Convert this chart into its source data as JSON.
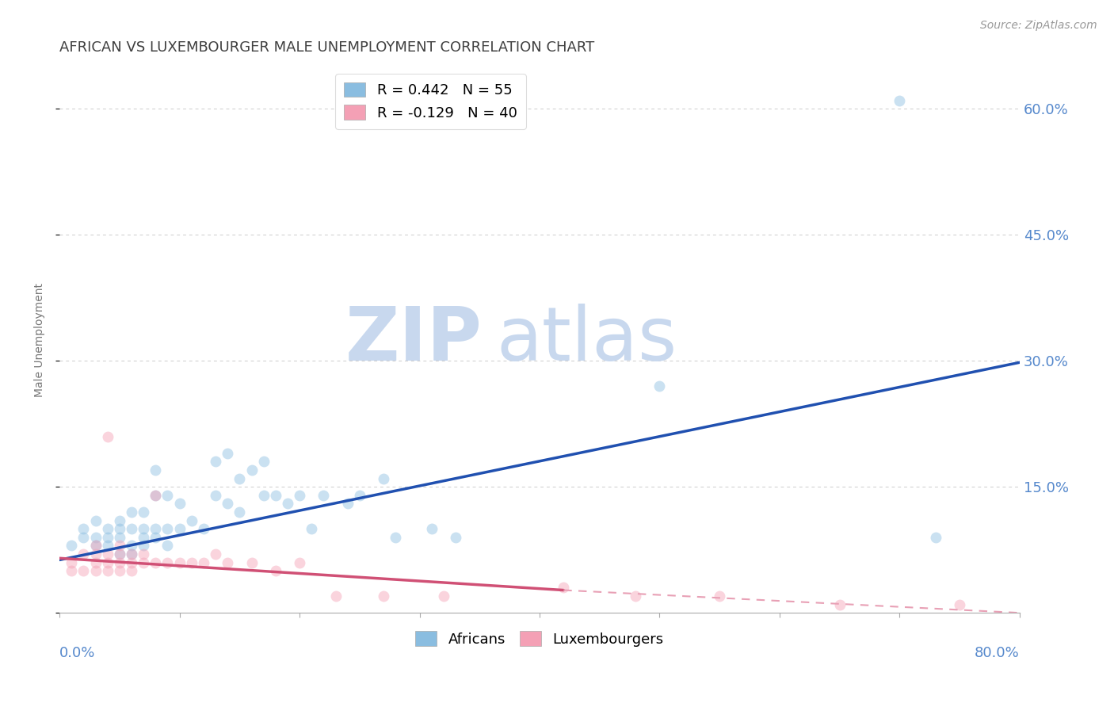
{
  "title": "AFRICAN VS LUXEMBOURGER MALE UNEMPLOYMENT CORRELATION CHART",
  "source": "Source: ZipAtlas.com",
  "ylabel": "Male Unemployment",
  "yticks": [
    0.0,
    0.15,
    0.3,
    0.45,
    0.6
  ],
  "ytick_labels": [
    "",
    "15.0%",
    "30.0%",
    "45.0%",
    "60.0%"
  ],
  "xlim": [
    0.0,
    0.8
  ],
  "ylim": [
    0.0,
    0.65
  ],
  "watermark_zip": "ZIP",
  "watermark_atlas": "atlas",
  "legend_entries": [
    {
      "label": "R = 0.442   N = 55",
      "color": "#8abde0"
    },
    {
      "label": "R = -0.129   N = 40",
      "color": "#f4a0b5"
    }
  ],
  "africans_scatter_x": [
    0.01,
    0.02,
    0.02,
    0.03,
    0.03,
    0.03,
    0.04,
    0.04,
    0.04,
    0.05,
    0.05,
    0.05,
    0.05,
    0.06,
    0.06,
    0.06,
    0.06,
    0.07,
    0.07,
    0.07,
    0.07,
    0.08,
    0.08,
    0.08,
    0.08,
    0.09,
    0.09,
    0.09,
    0.1,
    0.1,
    0.11,
    0.12,
    0.13,
    0.13,
    0.14,
    0.14,
    0.15,
    0.15,
    0.16,
    0.17,
    0.17,
    0.18,
    0.19,
    0.2,
    0.21,
    0.22,
    0.24,
    0.25,
    0.27,
    0.28,
    0.31,
    0.33,
    0.5,
    0.7,
    0.73
  ],
  "africans_scatter_y": [
    0.08,
    0.09,
    0.1,
    0.08,
    0.09,
    0.11,
    0.08,
    0.09,
    0.1,
    0.07,
    0.09,
    0.1,
    0.11,
    0.07,
    0.08,
    0.1,
    0.12,
    0.08,
    0.09,
    0.1,
    0.12,
    0.09,
    0.1,
    0.14,
    0.17,
    0.08,
    0.1,
    0.14,
    0.1,
    0.13,
    0.11,
    0.1,
    0.14,
    0.18,
    0.13,
    0.19,
    0.12,
    0.16,
    0.17,
    0.14,
    0.18,
    0.14,
    0.13,
    0.14,
    0.1,
    0.14,
    0.13,
    0.14,
    0.16,
    0.09,
    0.1,
    0.09,
    0.27,
    0.61,
    0.09
  ],
  "luxembourgers_scatter_x": [
    0.01,
    0.01,
    0.02,
    0.02,
    0.03,
    0.03,
    0.03,
    0.03,
    0.04,
    0.04,
    0.04,
    0.04,
    0.05,
    0.05,
    0.05,
    0.05,
    0.06,
    0.06,
    0.06,
    0.07,
    0.07,
    0.08,
    0.08,
    0.09,
    0.1,
    0.11,
    0.12,
    0.13,
    0.14,
    0.16,
    0.18,
    0.2,
    0.23,
    0.27,
    0.32,
    0.42,
    0.48,
    0.55,
    0.65,
    0.75
  ],
  "luxembourgers_scatter_y": [
    0.05,
    0.06,
    0.05,
    0.07,
    0.05,
    0.06,
    0.07,
    0.08,
    0.05,
    0.06,
    0.07,
    0.21,
    0.05,
    0.06,
    0.07,
    0.08,
    0.05,
    0.06,
    0.07,
    0.06,
    0.07,
    0.06,
    0.14,
    0.06,
    0.06,
    0.06,
    0.06,
    0.07,
    0.06,
    0.06,
    0.05,
    0.06,
    0.02,
    0.02,
    0.02,
    0.03,
    0.02,
    0.02,
    0.01,
    0.01
  ],
  "african_color": "#8abde0",
  "african_edge_color": "#6a9dc0",
  "luxembourger_color": "#f4a0b5",
  "luxembourger_edge_color": "#d47090",
  "trendline_african_color": "#2050b0",
  "trendline_luxembourger_solid_color": "#d05075",
  "trendline_luxembourger_dashed_color": "#e8a0b5",
  "background_color": "#ffffff",
  "grid_color": "#cccccc",
  "title_color": "#404040",
  "axis_label_color": "#5588cc",
  "marker_size": 100,
  "marker_alpha": 0.45,
  "title_fontsize": 13,
  "source_fontsize": 10,
  "ylabel_fontsize": 10,
  "legend_fontsize": 13,
  "watermark_fontsize_zip": 68,
  "watermark_fontsize_atlas": 68,
  "watermark_color": "#c8d8ee",
  "trendline_lw": 2.5,
  "african_trendline_x0": 0.0,
  "african_trendline_x1": 0.8,
  "african_trendline_y0": 0.063,
  "african_trendline_y1": 0.298,
  "lux_trendline_x0": 0.0,
  "lux_trendline_x1_solid": 0.42,
  "lux_trendline_x1_dashed": 0.8,
  "lux_trendline_y0": 0.065,
  "lux_trendline_y1_solid": 0.027,
  "lux_trendline_y1_dashed": 0.0,
  "bottom_legend_labels": [
    "Africans",
    "Luxembourgers"
  ]
}
